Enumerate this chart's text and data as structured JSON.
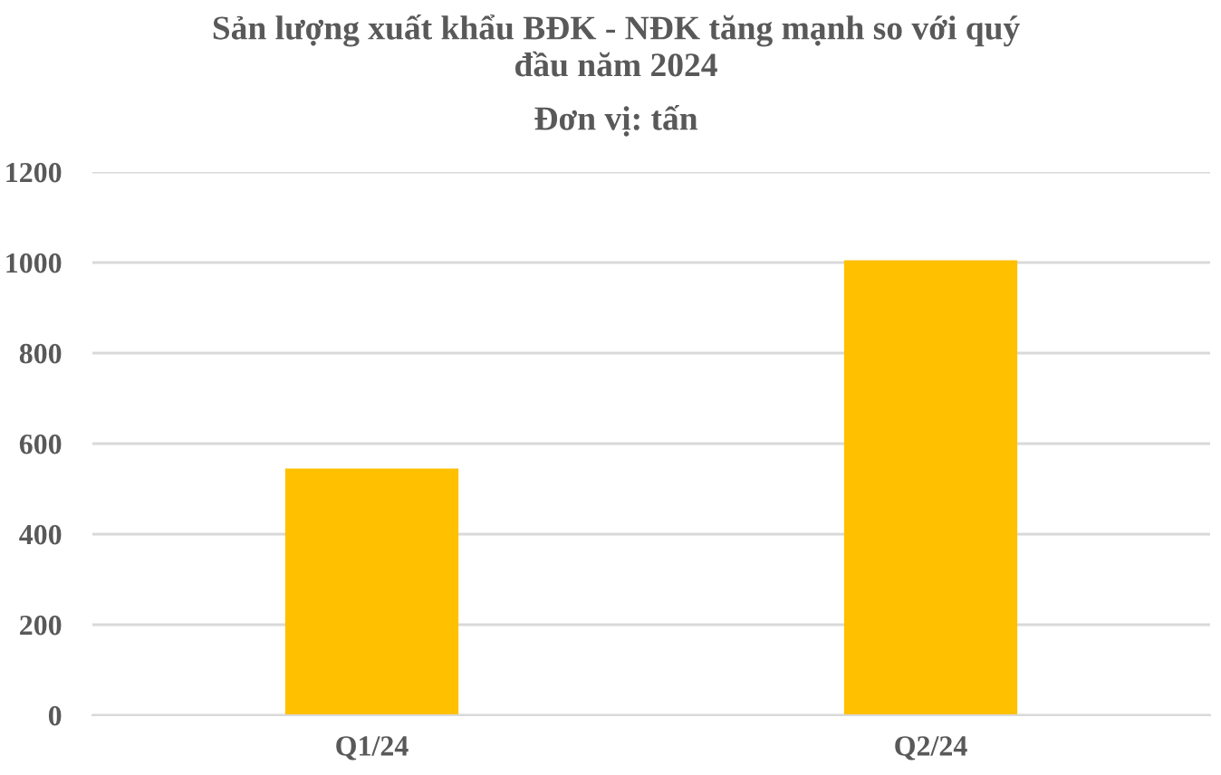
{
  "chart_data": {
    "type": "bar",
    "title": "Sản lượng xuất khẩu BĐK - NĐK tăng mạnh so với quý\nđầu năm 2024",
    "subtitle": "Đơn vị: tấn",
    "categories": [
      "Q1/24",
      "Q2/24"
    ],
    "values": [
      545,
      1005
    ],
    "color": "#ffc000",
    "ylim": [
      0,
      1200
    ],
    "yticks": [
      0,
      200,
      400,
      600,
      800,
      1000,
      1200
    ],
    "grid": "y"
  }
}
